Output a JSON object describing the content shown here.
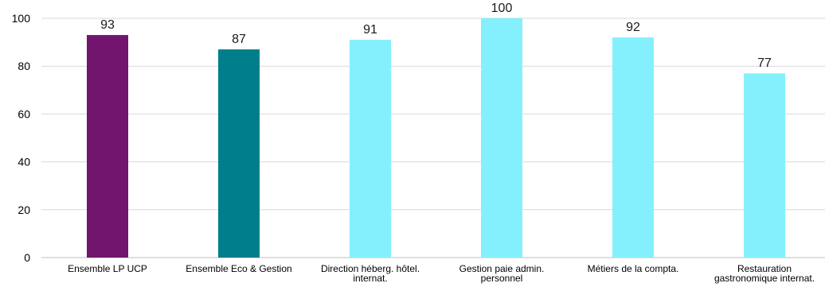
{
  "chart_data": {
    "type": "bar",
    "categories": [
      [
        "Ensemble LP UCP"
      ],
      [
        "Ensemble Eco & Gestion"
      ],
      [
        "Direction héberg. hôtel.",
        "internat."
      ],
      [
        "Gestion paie admin.",
        "personnel"
      ],
      [
        "Métiers de la compta."
      ],
      [
        "Restauration",
        "gastronomique internat."
      ]
    ],
    "values": [
      93,
      87,
      91,
      100,
      92,
      77
    ],
    "colors": [
      "#72156e",
      "#007f8a",
      "#84f0fd",
      "#84f0fd",
      "#84f0fd",
      "#84f0fd"
    ],
    "ylim": [
      0,
      100
    ],
    "yticks": [
      0,
      20,
      40,
      60,
      80,
      100
    ],
    "title": "",
    "xlabel": "",
    "ylabel": "",
    "grid": true,
    "legend": "none"
  }
}
